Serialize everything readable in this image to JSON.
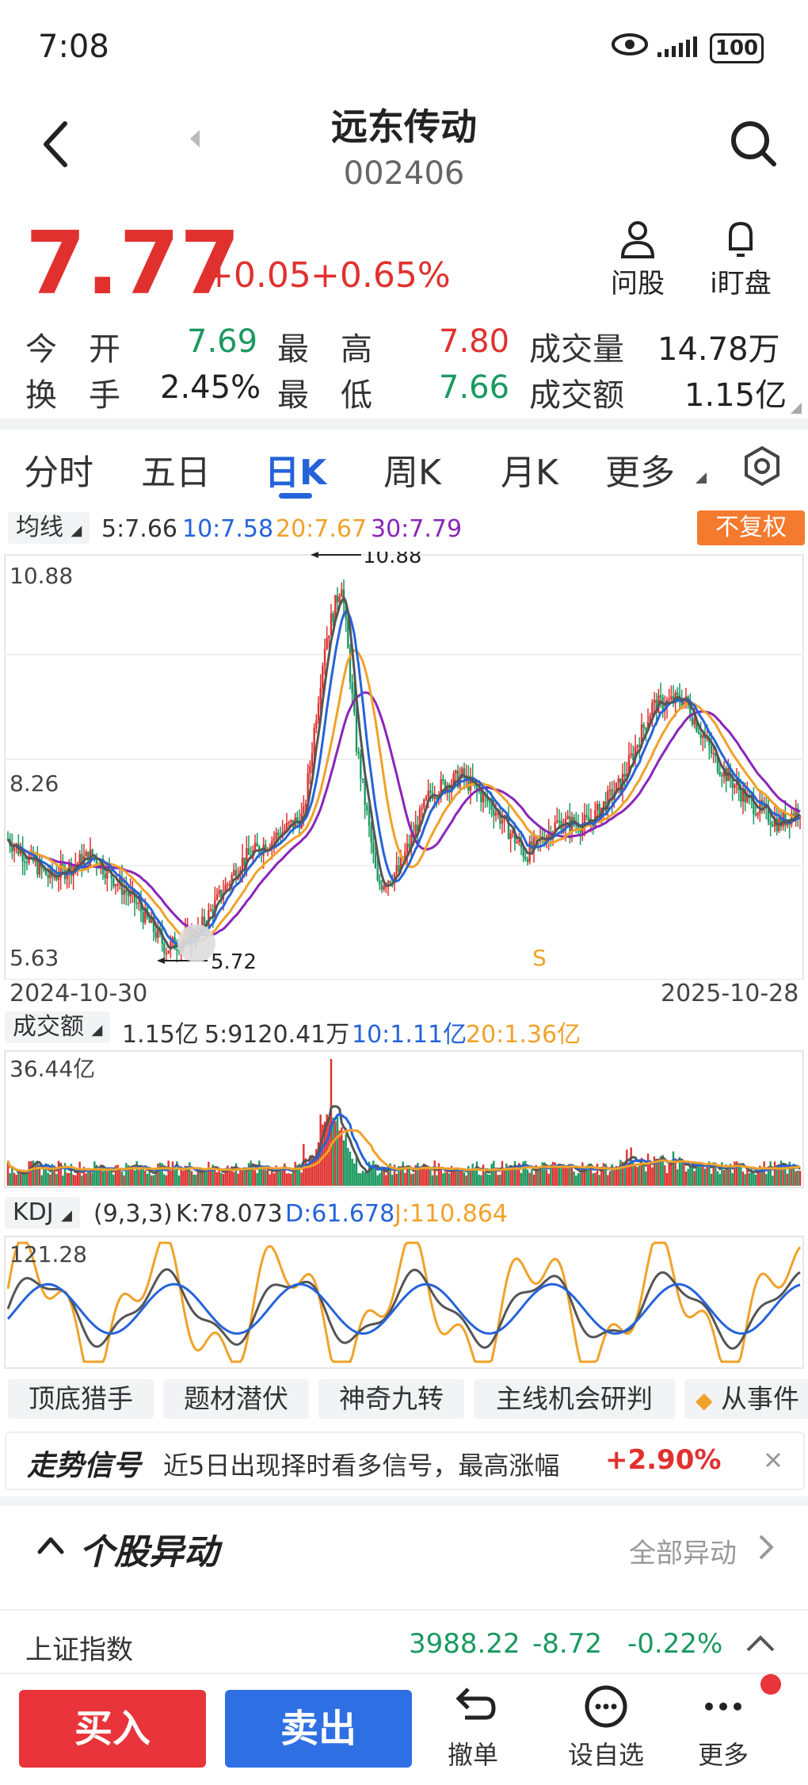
{
  "status": {
    "time": "7:08",
    "battery": "100"
  },
  "header": {
    "name": "远东传动",
    "code": "002406"
  },
  "quote": {
    "price": "7.77",
    "change": "+0.05",
    "change_pct": "+0.65%",
    "ask_label": "问股",
    "watch_label": "i盯盘"
  },
  "stats": {
    "open_label": "今　开",
    "open": "7.69",
    "high_label": "最　高",
    "high": "7.80",
    "vol_label": "成交量",
    "vol": "14.78万",
    "turnover_label": "换　手",
    "turnover": "2.45%",
    "low_label": "最　低",
    "low": "7.66",
    "amount_label": "成交额",
    "amount": "1.15亿"
  },
  "tabs": [
    "分时",
    "五日",
    "日K",
    "周K",
    "月K",
    "更多"
  ],
  "ma": {
    "label": "均线",
    "ma5": "5:7.66",
    "ma10": "10:7.58",
    "ma20": "20:7.67",
    "ma30": "30:7.79",
    "adjust": "不复权"
  },
  "kline": {
    "y_top": "10.88",
    "y_mid": "8.26",
    "y_bot": "5.63",
    "max_label": "10.88",
    "min_label": "5.72",
    "date_start": "2024-10-30",
    "date_end": "2025-10-28",
    "signal": "S"
  },
  "volume": {
    "label": "成交额",
    "v1": "1.15亿",
    "v5": "5:9120.41万",
    "v10": "10:1.11亿",
    "v20": "20:1.36亿",
    "ymax": "36.44亿"
  },
  "kdj": {
    "label": "KDJ",
    "params": "(9,3,3)",
    "k": "K:78.073",
    "d": "D:61.678",
    "j": "J:110.864",
    "ymax": "121.28"
  },
  "chips": [
    "顶底猎手",
    "题材潜伏",
    "神奇九转",
    "主线机会研判",
    "从事件"
  ],
  "signal": {
    "title": "走势信号",
    "text": "近5日出现择时看多信号，最高涨幅",
    "pct": "+2.90%"
  },
  "section": {
    "title": "个股异动",
    "all": "全部异动"
  },
  "index": {
    "name": "上证指数",
    "value": "3988.22",
    "change": "-8.72",
    "pct": "-0.22%"
  },
  "bottom": {
    "buy": "买入",
    "sell": "卖出",
    "cancel": "撤单",
    "watchlist": "设自选",
    "more": "更多"
  },
  "colors": {
    "up": "#e0312f",
    "down": "#1a9960",
    "accent": "#2563d9",
    "ma20": "#f0a22a",
    "ma30": "#8a25b8",
    "badge": "#f47a2e"
  }
}
